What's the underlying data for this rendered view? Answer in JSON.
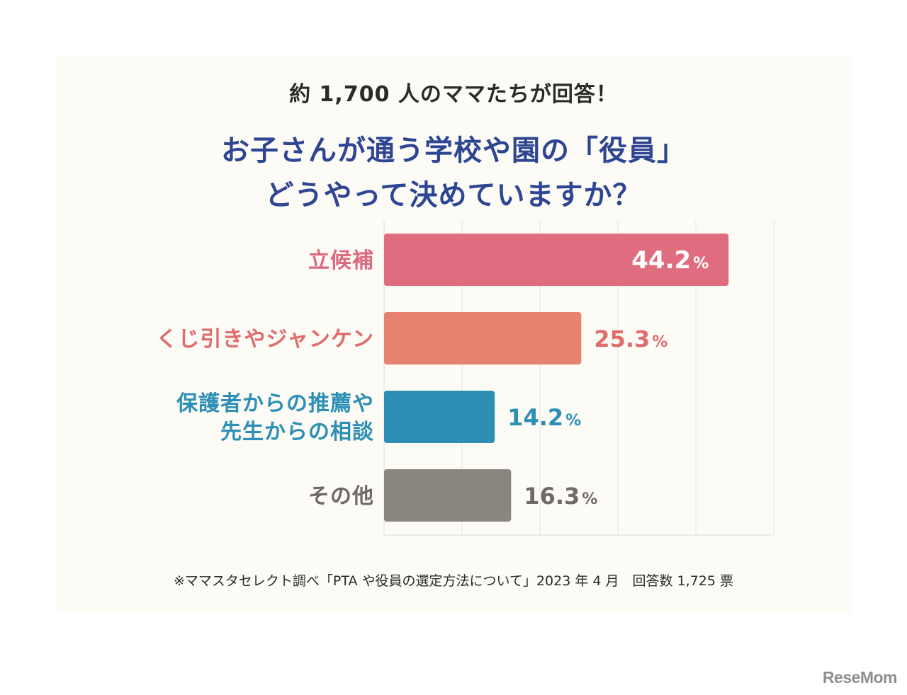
{
  "header": {
    "subtitle": "約 1,700 人のママたちが回答！",
    "title_line1": "お子さんが通う学校や園の「役員」",
    "title_line2": "どうやって決めていますか？"
  },
  "chart_data": {
    "type": "bar",
    "orientation": "horizontal",
    "categories": [
      [
        "立候補"
      ],
      [
        "くじ引きやジャンケン"
      ],
      [
        "保護者からの推薦や",
        "先生からの相談"
      ],
      [
        "その他"
      ]
    ],
    "values": [
      44.2,
      25.3,
      14.2,
      16.3
    ],
    "value_labels": [
      "44.2",
      "25.3",
      "14.2",
      "16.3"
    ],
    "unit": "%",
    "colors": [
      "#e06d7f",
      "#e88270",
      "#2e8fb5",
      "#8a857f"
    ],
    "label_colors": [
      "#dc6a7e",
      "#e06c6c",
      "#2e8fb5",
      "#6e6a66"
    ],
    "xlim": [
      0,
      50
    ],
    "grid": true
  },
  "footnote": "※ママスタセレクト調べ「PTA や役員の選定方法について」2023 年 4 月　回答数 1,725 票",
  "logo": "ReseMom"
}
